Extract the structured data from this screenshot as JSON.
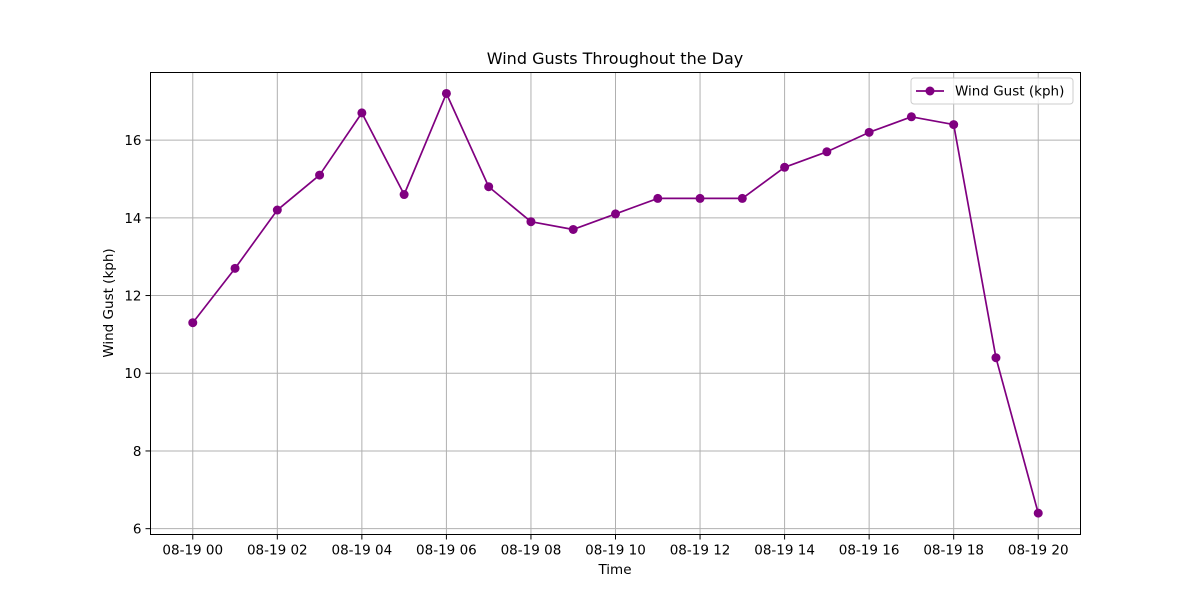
{
  "chart_data": {
    "type": "line",
    "title": "Wind Gusts Throughout the Day",
    "xlabel": "Time",
    "ylabel": "Wind Gust (kph)",
    "x": [
      "08-19 00",
      "08-19 01",
      "08-19 02",
      "08-19 03",
      "08-19 04",
      "08-19 05",
      "08-19 06",
      "08-19 07",
      "08-19 08",
      "08-19 09",
      "08-19 10",
      "08-19 11",
      "08-19 12",
      "08-19 13",
      "08-19 14",
      "08-19 15",
      "08-19 16",
      "08-19 17",
      "08-19 18",
      "08-19 19",
      "08-19 20"
    ],
    "x_ticks": [
      "08-19 00",
      "08-19 02",
      "08-19 04",
      "08-19 06",
      "08-19 08",
      "08-19 10",
      "08-19 12",
      "08-19 14",
      "08-19 16",
      "08-19 18",
      "08-19 20"
    ],
    "y_ticks": [
      6,
      8,
      10,
      12,
      14,
      16
    ],
    "ylim": [
      5.85,
      17.74
    ],
    "grid": true,
    "legend_position": "top-right",
    "series": [
      {
        "name": "Wind Gust (kph)",
        "color": "#800080",
        "marker": "circle",
        "values": [
          11.3,
          12.7,
          14.2,
          15.1,
          16.7,
          14.6,
          17.2,
          14.8,
          13.9,
          13.7,
          14.1,
          14.5,
          14.5,
          14.5,
          15.3,
          15.7,
          16.2,
          16.6,
          16.4,
          10.4,
          6.4
        ]
      }
    ]
  }
}
